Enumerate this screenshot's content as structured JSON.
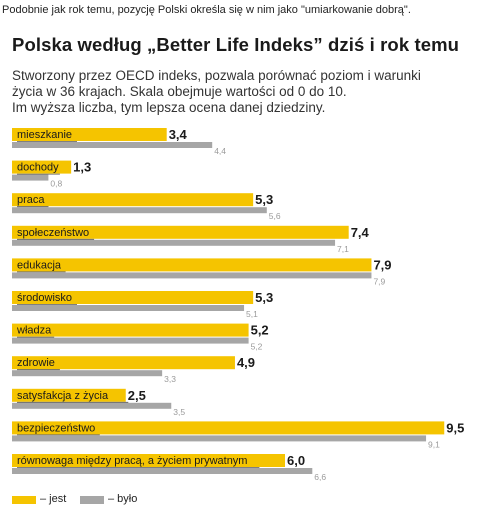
{
  "caption": "Podobnie jak rok temu, pozycję Polski określa się w nim jako \"umiarkowanie dobrą\".",
  "chart_data": {
    "type": "bar",
    "title": "Polska według „Better Life Indeks” dziś i rok temu",
    "subtitle_lines": [
      "Stworzony przez OECD indeks, pozwala porównać poziom i warunki",
      "życia w 36 krajach. Skala obejmuje wartości od 0 do 10.",
      "Im wyższa liczba, tym lepsza ocena danej dziedziny."
    ],
    "orientation": "horizontal",
    "xlim": [
      0,
      10
    ],
    "grid": false,
    "legend_position": "bottom-left",
    "categories": [
      "mieszkanie",
      "dochody",
      "praca",
      "społeczeństwo",
      "edukacja",
      "środowisko",
      "władza",
      "zdrowie",
      "satysfakcja z życia",
      "bezpieczeństwo",
      "równowaga między pracą, a życiem prywatnym"
    ],
    "series": [
      {
        "name": "– jest",
        "color": "#f5c400",
        "values": [
          3.4,
          1.3,
          5.3,
          7.4,
          7.9,
          5.3,
          5.2,
          4.9,
          2.5,
          9.5,
          6.0
        ],
        "labels": [
          "3,4",
          "1,3",
          "5,3",
          "7,4",
          "7,9",
          "5,3",
          "5,2",
          "4,9",
          "2,5",
          "9,5",
          "6,0"
        ]
      },
      {
        "name": "– było",
        "color": "#a6a6a6",
        "values": [
          4.4,
          0.8,
          5.6,
          7.1,
          7.9,
          5.1,
          5.2,
          3.3,
          3.5,
          9.1,
          6.6
        ],
        "labels": [
          "4,4",
          "0,8",
          "5,6",
          "7,1",
          "7,9",
          "5,1",
          "5,2",
          "3,3",
          "3,5",
          "9,1",
          "6,6"
        ]
      }
    ]
  }
}
